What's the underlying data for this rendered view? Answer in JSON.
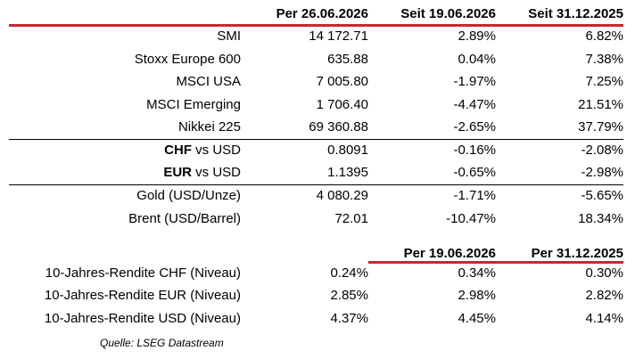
{
  "top_table": {
    "headers": [
      "Per 26.06.2026",
      "Seit 19.06.2026",
      "Seit 31.12.2025"
    ],
    "rows": [
      {
        "label": "SMI",
        "v1": "14 172.71",
        "v2": "2.89%",
        "v3": "6.82%"
      },
      {
        "label": "Stoxx Europe 600",
        "v1": "635.88",
        "v2": "0.04%",
        "v3": "7.38%"
      },
      {
        "label": "MSCI USA",
        "v1": "7 005.80",
        "v2": "-1.97%",
        "v3": "7.25%"
      },
      {
        "label": "MSCI Emerging",
        "v1": "1 706.40",
        "v2": "-4.47%",
        "v3": "21.51%"
      },
      {
        "label": "Nikkei 225",
        "v1": "69 360.88",
        "v2": "-2.65%",
        "v3": "37.79%"
      },
      {
        "label_bold": "CHF",
        "label_rest": " vs USD",
        "v1": "0.8091",
        "v2": "-0.16%",
        "v3": "-2.08%"
      },
      {
        "label_bold": "EUR",
        "label_rest": " vs USD",
        "v1": "1.1395",
        "v2": "-0.65%",
        "v3": "-2.98%"
      },
      {
        "label": "Gold (USD/Unze)",
        "v1": "4 080.29",
        "v2": "-1.71%",
        "v3": "-5.65%"
      },
      {
        "label": "Brent (USD/Barrel)",
        "v1": "72.01",
        "v2": "-10.47%",
        "v3": "18.34%"
      }
    ]
  },
  "bottom_table": {
    "headers": [
      "Per 19.06.2026",
      "Per 31.12.2025"
    ],
    "rows": [
      {
        "label": "10-Jahres-Rendite CHF (Niveau)",
        "v1": "0.24%",
        "v2": "0.34%",
        "v3": "0.30%"
      },
      {
        "label": "10-Jahres-Rendite EUR (Niveau)",
        "v1": "2.85%",
        "v2": "2.98%",
        "v3": "2.82%"
      },
      {
        "label": "10-Jahres-Rendite USD (Niveau)",
        "v1": "4.37%",
        "v2": "4.45%",
        "v3": "4.14%"
      }
    ]
  },
  "source": "Quelle: LSEG Datastream",
  "colors": {
    "accent_line": "#c8282d",
    "text": "#000000"
  }
}
